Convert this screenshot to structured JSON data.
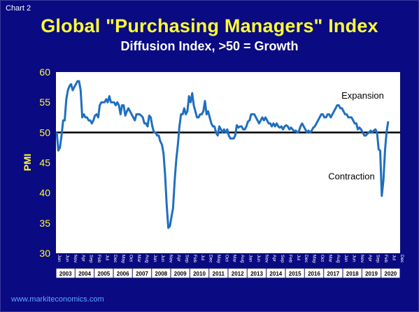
{
  "header": {
    "chart_label": "Chart 2",
    "title": "Global \"Purchasing Managers\" Index",
    "subtitle": "Diffusion Index, >50 = Growth"
  },
  "footer": {
    "source": "www.markiteconomics.com"
  },
  "colors": {
    "background": "#0a0a82",
    "plot_background": "#ffffff",
    "line": "#1f6fc0",
    "threshold": "#000000",
    "title": "#ffff33"
  },
  "chart_data": {
    "type": "line",
    "title": "Global \"Purchasing Managers\" Index",
    "subtitle": "Diffusion Index, >50 = Growth",
    "ylabel": "PMI",
    "ylim": [
      30,
      60
    ],
    "yticks": [
      "30",
      "35",
      "40",
      "45",
      "50",
      "55",
      "60"
    ],
    "threshold": 50,
    "grid": false,
    "annotations": [
      {
        "text": "Expansion",
        "x": "2019-01",
        "y": 55.6
      },
      {
        "text": "Contraction",
        "x": "2018-06",
        "y": 42.2
      }
    ],
    "years": [
      "2003",
      "2004",
      "2005",
      "2006",
      "2007",
      "2008",
      "2009",
      "2010",
      "2011",
      "2012",
      "2013",
      "2014",
      "2015",
      "2016",
      "2017",
      "2018",
      "2019",
      "2020"
    ],
    "month_labels": [
      "Jan",
      "Jun",
      "Nov",
      "Apr",
      "Sep",
      "Feb",
      "Jul",
      "Dec",
      "May",
      "Oct",
      "Mar",
      "Aug",
      "Jan",
      "Jun",
      "Nov",
      "Apr",
      "Sep",
      "Feb",
      "Jul",
      "Dec",
      "May",
      "Oct",
      "Mar",
      "Aug",
      "Jan",
      "Jun",
      "Nov",
      "Apr",
      "Sep",
      "Feb",
      "Jul",
      "Dec",
      "May",
      "Oct",
      "Mar",
      "Aug",
      "Jan",
      "Jun",
      "Nov",
      "Apr",
      "Sep",
      "Feb",
      "Jul",
      "Dec"
    ],
    "series": [
      {
        "points": [
          [
            "2003-01",
            50.0
          ],
          [
            "2003-02",
            47.0
          ],
          [
            "2003-03",
            47.5
          ],
          [
            "2003-04",
            49.5
          ],
          [
            "2003-05",
            52.0
          ],
          [
            "2003-06",
            52.0
          ],
          [
            "2003-07",
            55.5
          ],
          [
            "2003-08",
            57.0
          ],
          [
            "2003-09",
            57.7
          ],
          [
            "2003-10",
            58.0
          ],
          [
            "2003-11",
            57.0
          ],
          [
            "2003-12",
            57.5
          ],
          [
            "2004-01",
            58.0
          ],
          [
            "2004-02",
            58.5
          ],
          [
            "2004-03",
            58.5
          ],
          [
            "2004-04",
            57.0
          ],
          [
            "2004-05",
            52.5
          ],
          [
            "2004-06",
            53.0
          ],
          [
            "2004-07",
            52.5
          ],
          [
            "2004-08",
            52.5
          ],
          [
            "2004-09",
            52.0
          ],
          [
            "2004-10",
            52.0
          ],
          [
            "2004-11",
            51.5
          ],
          [
            "2004-12",
            52.0
          ],
          [
            "2005-01",
            52.8
          ],
          [
            "2005-02",
            53.0
          ],
          [
            "2005-03",
            52.5
          ],
          [
            "2005-04",
            54.5
          ],
          [
            "2005-05",
            55.0
          ],
          [
            "2005-06",
            55.0
          ],
          [
            "2005-07",
            55.0
          ],
          [
            "2005-08",
            55.5
          ],
          [
            "2005-09",
            55.0
          ],
          [
            "2005-10",
            56.0
          ],
          [
            "2005-11",
            55.0
          ],
          [
            "2005-12",
            55.0
          ],
          [
            "2006-01",
            55.0
          ],
          [
            "2006-02",
            54.5
          ],
          [
            "2006-03",
            55.0
          ],
          [
            "2006-04",
            54.5
          ],
          [
            "2006-05",
            53.0
          ],
          [
            "2006-06",
            54.5
          ],
          [
            "2006-07",
            54.5
          ],
          [
            "2006-08",
            52.8
          ],
          [
            "2006-09",
            53.5
          ],
          [
            "2006-10",
            54.0
          ],
          [
            "2006-11",
            53.5
          ],
          [
            "2006-12",
            53.0
          ],
          [
            "2007-01",
            52.5
          ],
          [
            "2007-02",
            52.0
          ],
          [
            "2007-03",
            53.0
          ],
          [
            "2007-04",
            53.0
          ],
          [
            "2007-05",
            53.0
          ],
          [
            "2007-06",
            52.8
          ],
          [
            "2007-07",
            52.5
          ],
          [
            "2007-08",
            51.5
          ],
          [
            "2007-09",
            51.5
          ],
          [
            "2007-10",
            51.0
          ],
          [
            "2007-11",
            52.8
          ],
          [
            "2007-12",
            52.5
          ],
          [
            "2008-01",
            51.0
          ],
          [
            "2008-02",
            50.0
          ],
          [
            "2008-03",
            50.0
          ],
          [
            "2008-04",
            49.5
          ],
          [
            "2008-05",
            49.5
          ],
          [
            "2008-06",
            48.5
          ],
          [
            "2008-07",
            48.0
          ],
          [
            "2008-08",
            46.5
          ],
          [
            "2008-09",
            43.0
          ],
          [
            "2008-10",
            38.0
          ],
          [
            "2008-11",
            34.2
          ],
          [
            "2008-12",
            34.5
          ],
          [
            "2009-01",
            36.0
          ],
          [
            "2009-02",
            37.5
          ],
          [
            "2009-03",
            42.0
          ],
          [
            "2009-04",
            45.5
          ],
          [
            "2009-05",
            48.0
          ],
          [
            "2009-06",
            51.0
          ],
          [
            "2009-07",
            53.0
          ],
          [
            "2009-08",
            53.0
          ],
          [
            "2009-09",
            54.0
          ],
          [
            "2009-10",
            53.0
          ],
          [
            "2009-11",
            53.5
          ],
          [
            "2009-12",
            56.0
          ],
          [
            "2010-01",
            55.0
          ],
          [
            "2010-02",
            56.5
          ],
          [
            "2010-03",
            54.5
          ],
          [
            "2010-04",
            53.5
          ],
          [
            "2010-05",
            52.5
          ],
          [
            "2010-06",
            52.5
          ],
          [
            "2010-07",
            53.0
          ],
          [
            "2010-08",
            53.0
          ],
          [
            "2010-09",
            53.5
          ],
          [
            "2010-10",
            55.2
          ],
          [
            "2010-11",
            53.0
          ],
          [
            "2010-12",
            53.5
          ],
          [
            "2011-01",
            52.5
          ],
          [
            "2011-02",
            51.5
          ],
          [
            "2011-03",
            51.0
          ],
          [
            "2011-04",
            51.0
          ],
          [
            "2011-05",
            50.0
          ],
          [
            "2011-06",
            49.5
          ],
          [
            "2011-07",
            51.0
          ],
          [
            "2011-08",
            50.5
          ],
          [
            "2011-09",
            50.0
          ],
          [
            "2011-10",
            50.5
          ],
          [
            "2011-11",
            50.0
          ],
          [
            "2011-12",
            50.5
          ],
          [
            "2012-01",
            49.5
          ],
          [
            "2012-02",
            49.0
          ],
          [
            "2012-03",
            49.0
          ],
          [
            "2012-04",
            49.0
          ],
          [
            "2012-05",
            49.5
          ],
          [
            "2012-06",
            51.2
          ],
          [
            "2012-07",
            50.8
          ],
          [
            "2012-08",
            51.0
          ],
          [
            "2012-09",
            51.0
          ],
          [
            "2012-10",
            50.5
          ],
          [
            "2012-11",
            50.5
          ],
          [
            "2012-12",
            51.0
          ],
          [
            "2013-01",
            51.8
          ],
          [
            "2013-02",
            52.0
          ],
          [
            "2013-03",
            53.0
          ],
          [
            "2013-04",
            53.0
          ],
          [
            "2013-05",
            53.0
          ],
          [
            "2013-06",
            52.5
          ],
          [
            "2013-07",
            52.0
          ],
          [
            "2013-08",
            51.5
          ],
          [
            "2013-09",
            52.0
          ],
          [
            "2013-10",
            52.5
          ],
          [
            "2013-11",
            52.0
          ],
          [
            "2013-12",
            52.5
          ],
          [
            "2014-01",
            52.0
          ],
          [
            "2014-02",
            51.5
          ],
          [
            "2014-03",
            51.5
          ],
          [
            "2014-04",
            51.0
          ],
          [
            "2014-05",
            51.5
          ],
          [
            "2014-06",
            51.0
          ],
          [
            "2014-07",
            51.5
          ],
          [
            "2014-08",
            51.0
          ],
          [
            "2014-09",
            50.8
          ],
          [
            "2014-10",
            51.0
          ],
          [
            "2014-11",
            50.5
          ],
          [
            "2014-12",
            51.0
          ],
          [
            "2015-01",
            51.2
          ],
          [
            "2015-02",
            51.0
          ],
          [
            "2015-03",
            50.5
          ],
          [
            "2015-04",
            50.8
          ],
          [
            "2015-05",
            50.5
          ],
          [
            "2015-06",
            50.2
          ],
          [
            "2015-07",
            50.3
          ],
          [
            "2015-08",
            50.0
          ],
          [
            "2015-09",
            50.2
          ],
          [
            "2015-10",
            51.0
          ],
          [
            "2015-11",
            51.5
          ],
          [
            "2015-12",
            51.0
          ],
          [
            "2016-01",
            50.5
          ],
          [
            "2016-02",
            50.0
          ],
          [
            "2016-03",
            50.3
          ],
          [
            "2016-04",
            50.0
          ],
          [
            "2016-05",
            50.3
          ],
          [
            "2016-06",
            50.8
          ],
          [
            "2016-07",
            51.0
          ],
          [
            "2016-08",
            51.5
          ],
          [
            "2016-09",
            52.0
          ],
          [
            "2016-10",
            52.5
          ],
          [
            "2016-11",
            53.0
          ],
          [
            "2016-12",
            53.0
          ],
          [
            "2017-01",
            52.5
          ],
          [
            "2017-02",
            52.5
          ],
          [
            "2017-03",
            53.0
          ],
          [
            "2017-04",
            53.0
          ],
          [
            "2017-05",
            52.5
          ],
          [
            "2017-06",
            53.0
          ],
          [
            "2017-07",
            53.5
          ],
          [
            "2017-08",
            54.0
          ],
          [
            "2017-09",
            54.5
          ],
          [
            "2017-10",
            54.5
          ],
          [
            "2017-11",
            54.0
          ],
          [
            "2017-12",
            54.0
          ],
          [
            "2018-01",
            53.5
          ],
          [
            "2018-02",
            53.0
          ],
          [
            "2018-03",
            53.0
          ],
          [
            "2018-04",
            52.5
          ],
          [
            "2018-05",
            52.5
          ],
          [
            "2018-06",
            52.5
          ],
          [
            "2018-07",
            52.0
          ],
          [
            "2018-08",
            51.5
          ],
          [
            "2018-09",
            51.5
          ],
          [
            "2018-10",
            50.5
          ],
          [
            "2018-11",
            50.8
          ],
          [
            "2018-12",
            50.5
          ],
          [
            "2019-01",
            50.0
          ],
          [
            "2019-02",
            49.5
          ],
          [
            "2019-03",
            49.5
          ],
          [
            "2019-04",
            49.8
          ],
          [
            "2019-05",
            50.0
          ],
          [
            "2019-06",
            50.3
          ],
          [
            "2019-07",
            50.0
          ],
          [
            "2019-08",
            50.3
          ],
          [
            "2019-09",
            50.5
          ],
          [
            "2019-10",
            50.0
          ],
          [
            "2019-11",
            47.2
          ],
          [
            "2019-12",
            47.0
          ],
          [
            "2020-01",
            39.5
          ],
          [
            "2020-02",
            42.0
          ],
          [
            "2020-03",
            47.0
          ],
          [
            "2020-04",
            50.0
          ],
          [
            "2020-05",
            51.8
          ]
        ]
      }
    ]
  }
}
